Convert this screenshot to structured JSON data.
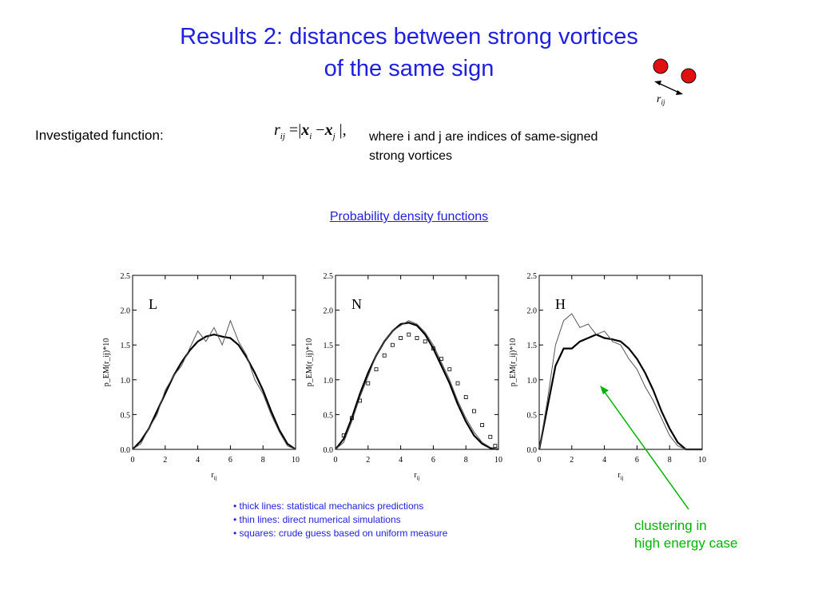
{
  "title": {
    "line1": "Results 2:  distances between strong vortices",
    "line2": "of the same sign"
  },
  "icon_label": "r",
  "icon_label_sub": "ij",
  "investigated_label": "Investigated function:",
  "formula": {
    "lhs": "r",
    "lhs_sub": "ij",
    "eq": " =|",
    "xi": "x",
    "xi_sub": "i",
    "minus": " −",
    "xj": "x",
    "xj_sub": "j",
    "close": " |,"
  },
  "where_text": {
    "line1": "where i and j are indices of same-signed",
    "line2": "strong vortices"
  },
  "pdf_link": "Probability density functions",
  "legend": [
    "• thick lines: statistical mechanics predictions",
    "• thin  lines: direct numerical simulations",
    "• squares: crude guess based on uniform measure"
  ],
  "annotation": {
    "line1": "clustering in",
    "line2": "high energy case"
  },
  "colors": {
    "title_blue": "#1f1fe0",
    "vortex_red": "#e01010",
    "annotation_green": "#00b300"
  },
  "chart_data": [
    {
      "type": "line",
      "panel_label": "L",
      "xlabel": "r_ij",
      "ylabel": "p_EM(r_ij)*10",
      "xlim": [
        0,
        10
      ],
      "ylim": [
        0,
        2.5
      ],
      "xticks": [
        "0",
        "2",
        "4",
        "6",
        "8",
        "10"
      ],
      "yticks": [
        "0.0",
        "0.5",
        "1.0",
        "1.5",
        "2.0",
        "2.5"
      ],
      "series": [
        {
          "style": "thick",
          "x": [
            0,
            0.5,
            1,
            1.5,
            2,
            2.5,
            3,
            3.5,
            4,
            4.5,
            5,
            5.5,
            6,
            6.5,
            7,
            7.5,
            8,
            8.5,
            9,
            9.5,
            10
          ],
          "y": [
            0,
            0.12,
            0.3,
            0.55,
            0.8,
            1.05,
            1.25,
            1.42,
            1.55,
            1.62,
            1.65,
            1.62,
            1.6,
            1.5,
            1.32,
            1.1,
            0.85,
            0.55,
            0.28,
            0.08,
            0
          ]
        },
        {
          "style": "thin",
          "x": [
            0,
            0.5,
            1,
            1.5,
            2,
            2.5,
            3,
            3.5,
            4,
            4.5,
            5,
            5.5,
            6,
            6.5,
            7,
            7.5,
            8,
            8.5,
            9,
            9.5,
            10
          ],
          "y": [
            0,
            0.08,
            0.3,
            0.5,
            0.85,
            1.05,
            1.2,
            1.45,
            1.7,
            1.55,
            1.75,
            1.5,
            1.85,
            1.55,
            1.35,
            1.0,
            0.8,
            0.5,
            0.25,
            0.05,
            0
          ]
        }
      ]
    },
    {
      "type": "line",
      "panel_label": "N",
      "xlabel": "r_ij",
      "ylabel": "p_EM(r_ij)*10",
      "xlim": [
        0,
        10
      ],
      "ylim": [
        0,
        2.5
      ],
      "xticks": [
        "0",
        "2",
        "4",
        "6",
        "8",
        "10"
      ],
      "yticks": [
        "0.0",
        "0.5",
        "1.0",
        "1.5",
        "2.0",
        "2.5"
      ],
      "series": [
        {
          "style": "thick",
          "x": [
            0,
            0.5,
            1,
            1.5,
            2,
            2.5,
            3,
            3.5,
            4,
            4.5,
            5,
            5.5,
            6,
            6.5,
            7,
            7.5,
            8,
            8.5,
            9,
            9.5,
            10
          ],
          "y": [
            0,
            0.15,
            0.45,
            0.8,
            1.1,
            1.35,
            1.55,
            1.7,
            1.8,
            1.82,
            1.78,
            1.65,
            1.45,
            1.2,
            0.95,
            0.65,
            0.4,
            0.2,
            0.08,
            0.02,
            0
          ]
        },
        {
          "style": "thin",
          "x": [
            0,
            0.5,
            1,
            1.5,
            2,
            2.5,
            3,
            3.5,
            4,
            4.5,
            5,
            5.5,
            6,
            6.5,
            7,
            7.5,
            8,
            8.5,
            9,
            9.5,
            10
          ],
          "y": [
            0,
            0.1,
            0.4,
            0.75,
            1.05,
            1.35,
            1.55,
            1.7,
            1.78,
            1.85,
            1.8,
            1.68,
            1.5,
            1.25,
            1.0,
            0.7,
            0.45,
            0.25,
            0.1,
            0.03,
            0
          ]
        },
        {
          "style": "squares",
          "x": [
            0.5,
            1,
            1.5,
            2,
            2.5,
            3,
            3.5,
            4,
            4.5,
            5,
            5.5,
            6,
            6.5,
            7,
            7.5,
            8,
            8.5,
            9,
            9.5,
            9.8
          ],
          "y": [
            0.2,
            0.45,
            0.7,
            0.95,
            1.15,
            1.35,
            1.5,
            1.6,
            1.65,
            1.6,
            1.55,
            1.45,
            1.3,
            1.15,
            0.95,
            0.75,
            0.55,
            0.35,
            0.18,
            0.05
          ]
        }
      ]
    },
    {
      "type": "line",
      "panel_label": "H",
      "xlabel": "r_ij",
      "ylabel": "p_EM(r_ij)*10",
      "xlim": [
        0,
        10
      ],
      "ylim": [
        0,
        2.5
      ],
      "xticks": [
        "0",
        "2",
        "4",
        "6",
        "8",
        "10"
      ],
      "yticks": [
        "0.0",
        "0.5",
        "1.0",
        "1.5",
        "2.0",
        "2.5"
      ],
      "series": [
        {
          "style": "thick",
          "x": [
            0,
            0.5,
            1,
            1.5,
            2,
            2.5,
            3,
            3.5,
            4,
            4.5,
            5,
            5.5,
            6,
            6.5,
            7,
            7.5,
            8,
            8.5,
            9,
            9.5,
            10
          ],
          "y": [
            0,
            0.6,
            1.2,
            1.45,
            1.45,
            1.55,
            1.6,
            1.65,
            1.6,
            1.58,
            1.55,
            1.45,
            1.3,
            1.1,
            0.85,
            0.55,
            0.3,
            0.1,
            0,
            0,
            0
          ]
        },
        {
          "style": "thin",
          "x": [
            0,
            0.5,
            1,
            1.5,
            2,
            2.5,
            3,
            3.5,
            4,
            4.5,
            5,
            5.5,
            6,
            6.5,
            7,
            7.5,
            8,
            8.5,
            9,
            9.5,
            10
          ],
          "y": [
            0,
            0.7,
            1.5,
            1.85,
            1.95,
            1.75,
            1.8,
            1.65,
            1.7,
            1.55,
            1.5,
            1.3,
            1.15,
            0.9,
            0.7,
            0.45,
            0.2,
            0.05,
            0,
            0,
            0
          ]
        }
      ]
    }
  ]
}
